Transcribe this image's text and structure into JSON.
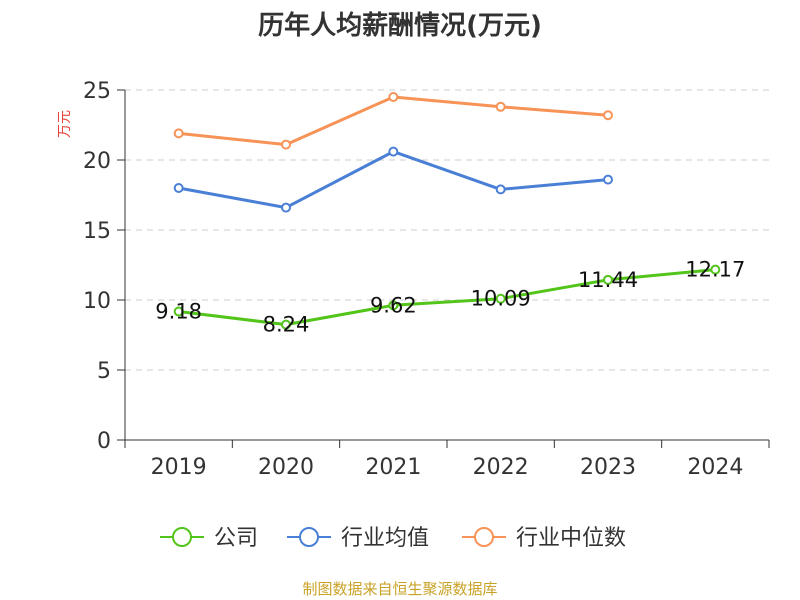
{
  "chart_data": {
    "type": "line",
    "title": "历年人均薪酬情况(万元)",
    "ylabel": "万元",
    "xlabel": "",
    "categories": [
      "2019",
      "2020",
      "2021",
      "2022",
      "2023",
      "2024"
    ],
    "y_ticks": [
      "0",
      "5",
      "10",
      "15",
      "20",
      "25"
    ],
    "ylim": [
      0,
      25
    ],
    "grid": true,
    "legend_position": "bottom",
    "series": [
      {
        "name": "公司",
        "color": "#52c41a",
        "values": [
          9.18,
          8.24,
          9.62,
          10.09,
          11.44,
          12.17
        ],
        "labels": [
          "9.18",
          "8.24",
          "9.62",
          "10.09",
          "11.44",
          "12.17"
        ]
      },
      {
        "name": "行业均值",
        "color": "#4a7fd6",
        "values": [
          18.0,
          16.6,
          20.6,
          17.9,
          18.6,
          null
        ]
      },
      {
        "name": "行业中位数",
        "color": "#f79357",
        "values": [
          21.9,
          21.1,
          24.5,
          23.8,
          23.2,
          null
        ]
      }
    ]
  },
  "source": "制图数据来自恒生聚源数据库",
  "colors": {
    "axis": "#333333",
    "grid": "#cccccc",
    "ylabel": "#e8433a",
    "source": "#c9a227"
  }
}
